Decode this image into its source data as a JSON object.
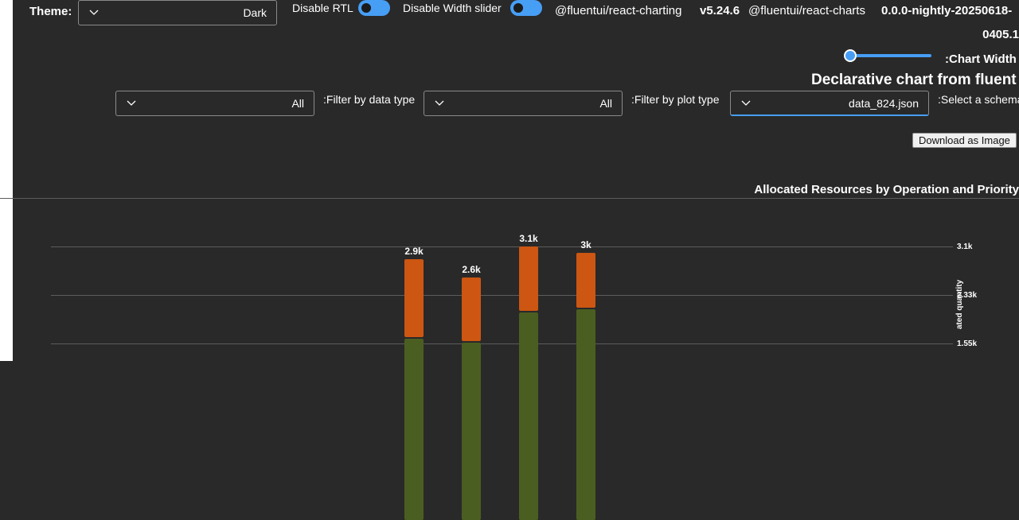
{
  "controls": {
    "theme_label": "Theme:",
    "theme_value": "Dark",
    "disable_rtl_label": "Disable RTL",
    "disable_width_slider_label": "Disable Width slider",
    "pkg1_name": "@fluentui/react-charting",
    "pkg1_version": "v5.24.6",
    "pkg2_name": "@fluentui/react-charts",
    "pkg2_version_line1": "0.0.0-nightly-20250618-",
    "pkg2_version_line2": "0405.1",
    "chart_width_label": ":Chart Width",
    "width_slider_value": 0.0,
    "page_heading": "Declarative chart from fluent",
    "filter_data_type_label": ":Filter by data type",
    "filter_data_type_value": "All",
    "filter_plot_type_label": ":Filter by plot type",
    "filter_plot_type_value": "All",
    "select_schema_label": ":Select a schema",
    "select_schema_value": "data_824.json",
    "download_label": "Download as Image",
    "accent_color": "#479ef5"
  },
  "chart_data": {
    "type": "bar",
    "title": "Allocated Resources by Operation and Priority",
    "ylabel": "ated quantity",
    "y_ticks": [
      "3.1k",
      "2.33k",
      "1.55k"
    ],
    "ylim": [
      0,
      3100
    ],
    "series": [
      {
        "color": "#4b5e21",
        "values": [
          1630,
          1560,
          2050,
          2090
        ]
      },
      {
        "color": "#cc5612",
        "values": [
          1270,
          1040,
          1050,
          910
        ]
      }
    ],
    "totals": [
      "2.9k",
      "2.6k",
      "3.1k",
      "3k"
    ],
    "total_values": [
      2900,
      2600,
      3100,
      3000
    ]
  }
}
